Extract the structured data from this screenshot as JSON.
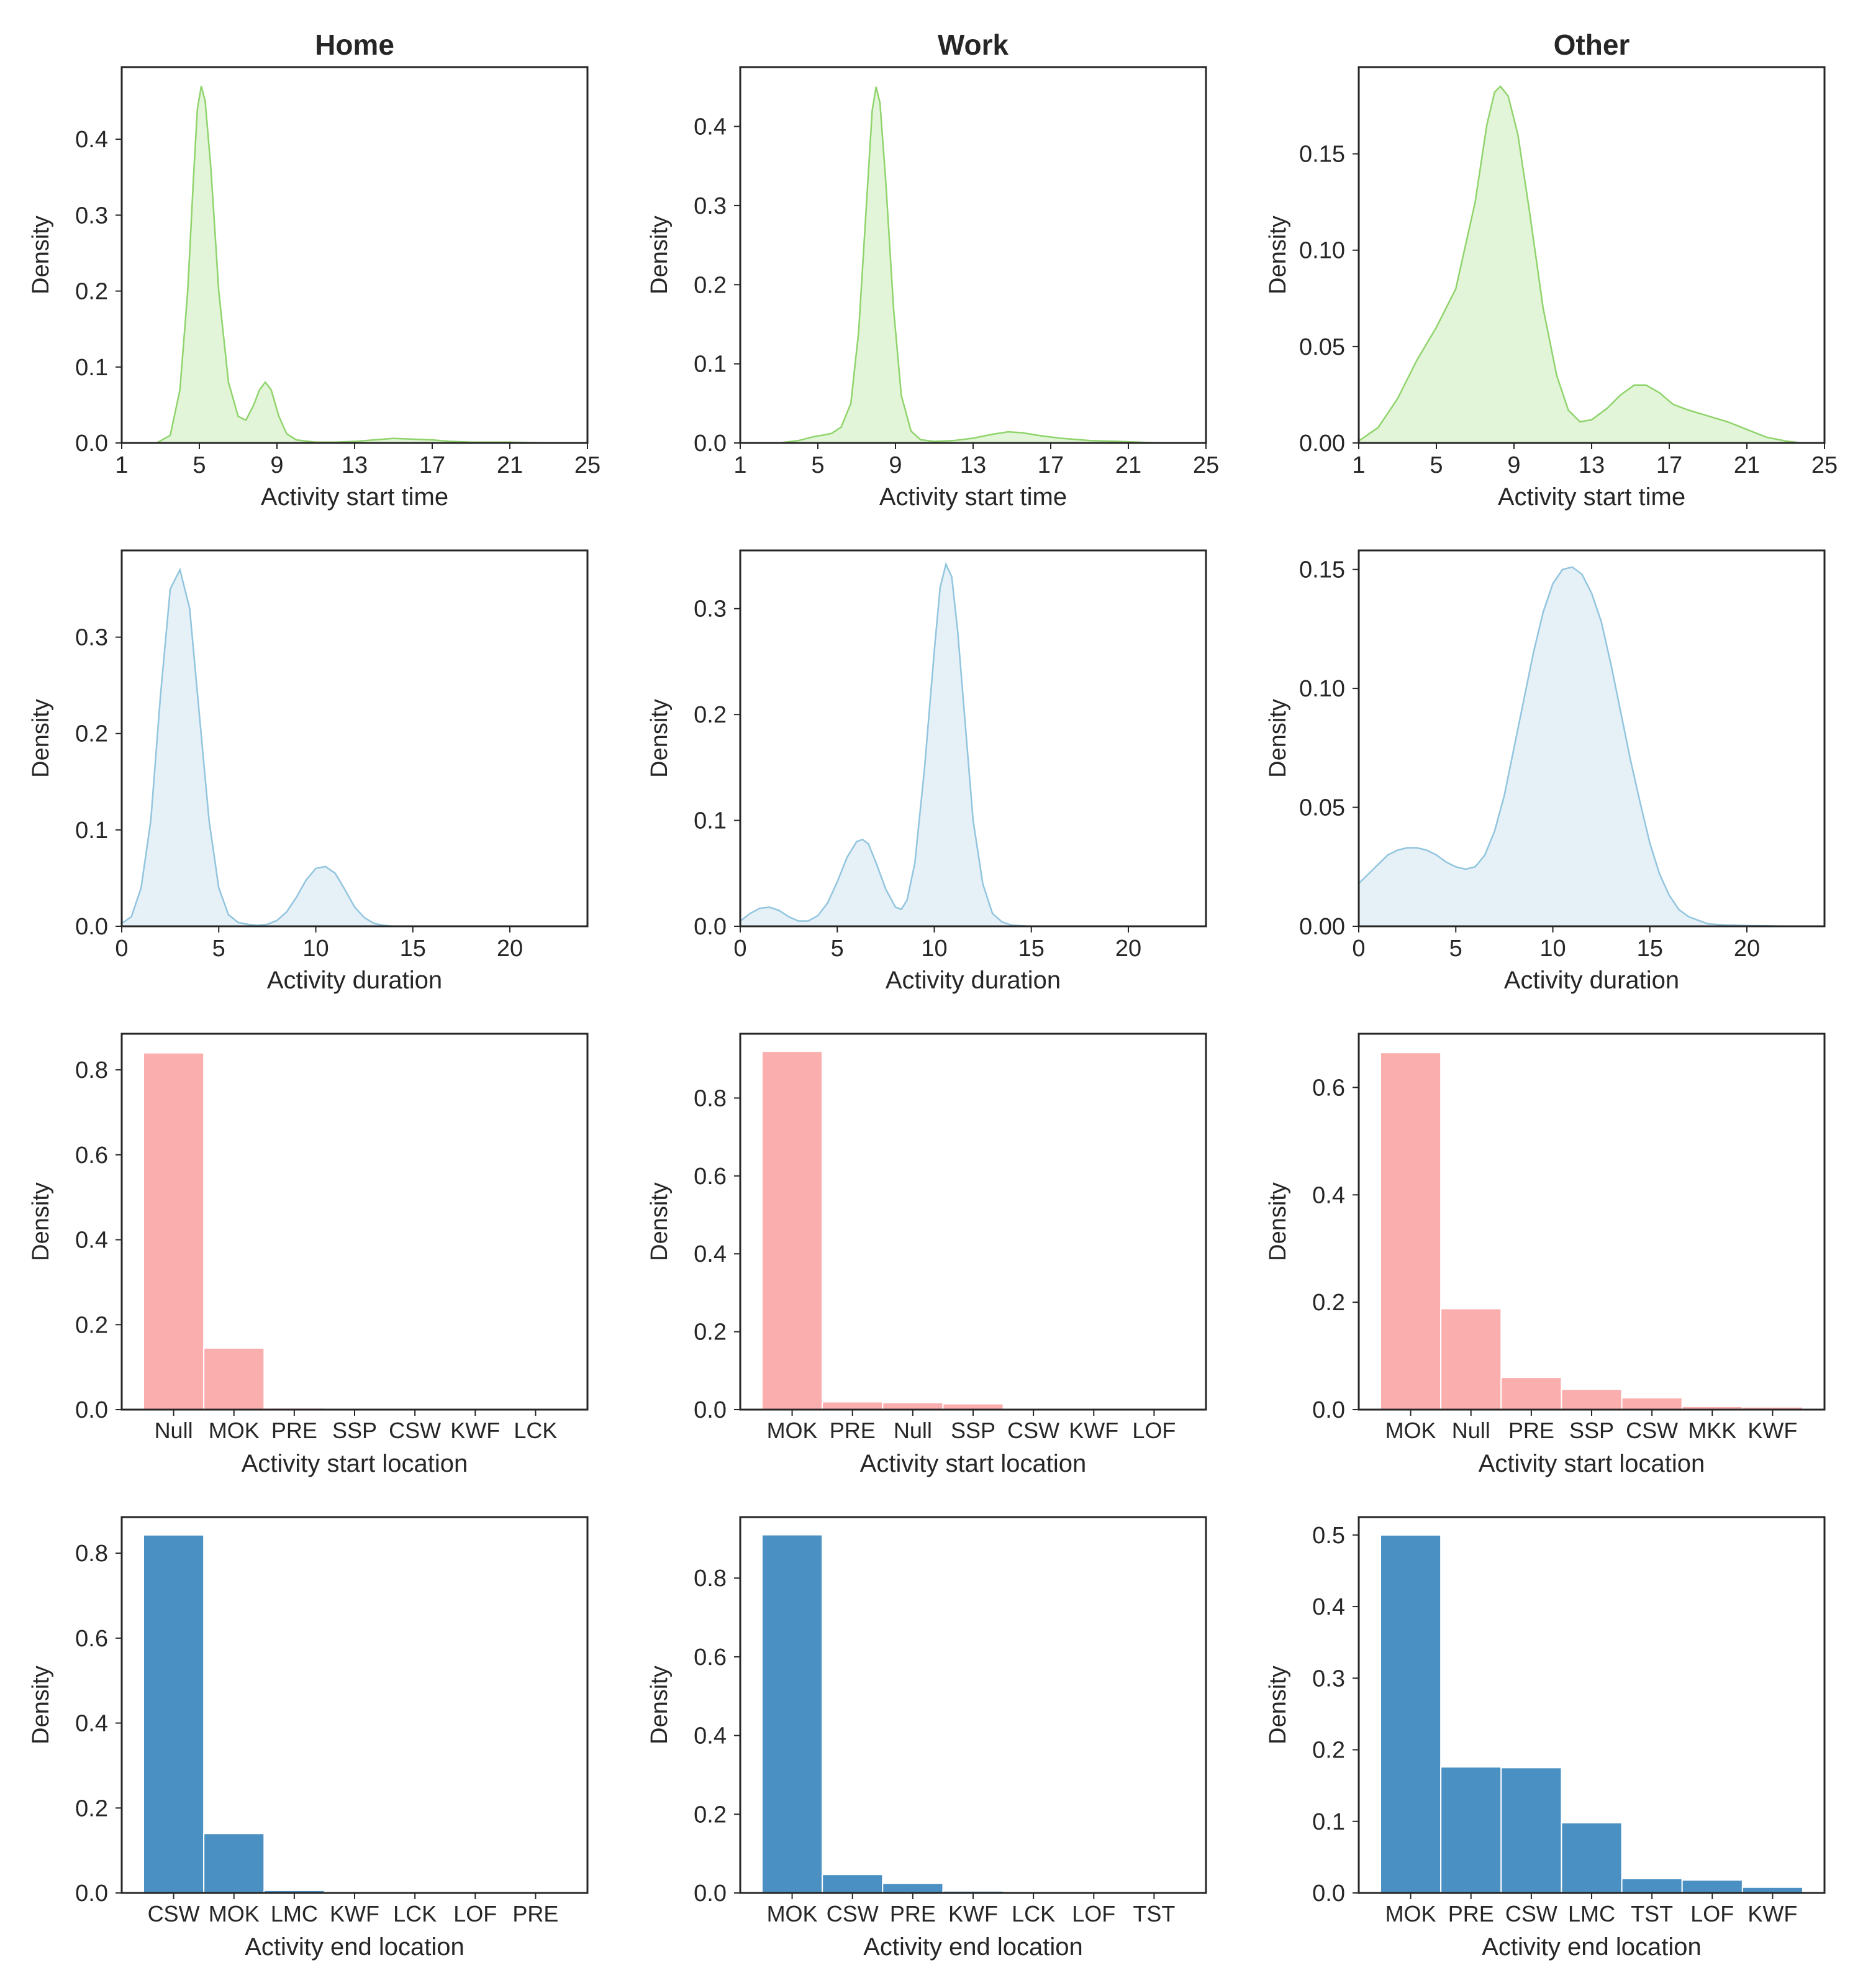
{
  "colors": {
    "start_time_line": "#8fd46c",
    "start_time_fill": "#e3f5d8",
    "duration_line": "#92c5de",
    "duration_fill": "#e5f0f7",
    "start_loc_bar": "#fbaeae",
    "end_loc_bar": "#4a90c2",
    "text": "#262626"
  },
  "chart_data": [
    {
      "type": "area",
      "column": "Home",
      "title": "Home",
      "xlabel": "Activity start time",
      "ylabel": "Density",
      "xlim": [
        1,
        25
      ],
      "ylim": [
        0,
        0.495
      ],
      "xticks": [
        "1",
        "5",
        "9",
        "13",
        "17",
        "21",
        "25"
      ],
      "yticks": [
        "0.0",
        "0.1",
        "0.2",
        "0.3",
        "0.4"
      ],
      "x": [
        2.8,
        3.5,
        4,
        4.4,
        4.7,
        4.9,
        5.1,
        5.3,
        5.6,
        6,
        6.5,
        7,
        7.4,
        7.8,
        8.1,
        8.4,
        8.7,
        9.1,
        9.5,
        10,
        11,
        12,
        13,
        14,
        15,
        16,
        17,
        18,
        19,
        20,
        21,
        22,
        23,
        24,
        25
      ],
      "y": [
        0,
        0.01,
        0.07,
        0.2,
        0.35,
        0.44,
        0.47,
        0.45,
        0.36,
        0.2,
        0.08,
        0.035,
        0.03,
        0.05,
        0.07,
        0.08,
        0.07,
        0.035,
        0.012,
        0.004,
        0.001,
        0.001,
        0.002,
        0.004,
        0.006,
        0.005,
        0.004,
        0.002,
        0.001,
        0.001,
        0.001,
        0.0005,
        0,
        0,
        0
      ]
    },
    {
      "type": "area",
      "column": "Work",
      "title": "Work",
      "xlabel": "Activity start time",
      "ylabel": "Density",
      "xlim": [
        1,
        25
      ],
      "ylim": [
        0,
        0.475
      ],
      "xticks": [
        "1",
        "5",
        "9",
        "13",
        "17",
        "21",
        "25"
      ],
      "yticks": [
        "0.0",
        "0.1",
        "0.2",
        "0.3",
        "0.4"
      ],
      "x": [
        3,
        4,
        4.8,
        5.3,
        5.7,
        6.2,
        6.7,
        7.1,
        7.5,
        7.8,
        8,
        8.2,
        8.5,
        8.9,
        9.3,
        9.8,
        10.3,
        11,
        12,
        13,
        14,
        14.8,
        15.5,
        16.5,
        17.5,
        19,
        20.5,
        22,
        23
      ],
      "y": [
        0,
        0.003,
        0.008,
        0.01,
        0.012,
        0.02,
        0.05,
        0.14,
        0.3,
        0.42,
        0.45,
        0.43,
        0.33,
        0.17,
        0.06,
        0.015,
        0.004,
        0.002,
        0.003,
        0.006,
        0.011,
        0.014,
        0.013,
        0.009,
        0.006,
        0.003,
        0.002,
        0.0005,
        0
      ]
    },
    {
      "type": "area",
      "column": "Other",
      "title": "Other",
      "xlabel": "Activity start time",
      "ylabel": "Density",
      "xlim": [
        1,
        25
      ],
      "ylim": [
        0,
        0.195
      ],
      "xticks": [
        "1",
        "5",
        "9",
        "13",
        "17",
        "21",
        "25"
      ],
      "yticks": [
        "0.00",
        "0.05",
        "0.10",
        "0.15"
      ],
      "x": [
        1,
        2,
        3,
        4,
        5,
        6,
        7,
        7.6,
        8,
        8.3,
        8.7,
        9.2,
        9.8,
        10.5,
        11.2,
        11.8,
        12.4,
        13,
        13.8,
        14.5,
        15.2,
        15.8,
        16.5,
        17.2,
        18,
        19,
        20,
        21,
        22,
        23,
        23.8
      ],
      "y": [
        0.001,
        0.008,
        0.023,
        0.043,
        0.06,
        0.08,
        0.125,
        0.165,
        0.182,
        0.185,
        0.18,
        0.16,
        0.12,
        0.07,
        0.035,
        0.017,
        0.011,
        0.012,
        0.018,
        0.025,
        0.03,
        0.03,
        0.026,
        0.02,
        0.017,
        0.014,
        0.011,
        0.007,
        0.003,
        0.001,
        0
      ]
    },
    {
      "type": "area",
      "column": "Home",
      "xlabel": "Activity duration",
      "ylabel": "Density",
      "xlim": [
        0,
        24
      ],
      "ylim": [
        0,
        0.39
      ],
      "xticks": [
        "0",
        "5",
        "10",
        "15",
        "20"
      ],
      "yticks": [
        "0.0",
        "0.1",
        "0.2",
        "0.3"
      ],
      "x": [
        0,
        0.5,
        1,
        1.5,
        2,
        2.5,
        3,
        3.5,
        4,
        4.5,
        5,
        5.5,
        6,
        6.5,
        7,
        7.5,
        8,
        8.5,
        9,
        9.5,
        10,
        10.5,
        11,
        11.5,
        12,
        12.5,
        13,
        13.5,
        14,
        15
      ],
      "y": [
        0.003,
        0.01,
        0.04,
        0.11,
        0.24,
        0.35,
        0.37,
        0.33,
        0.22,
        0.11,
        0.04,
        0.012,
        0.004,
        0.002,
        0.001,
        0.002,
        0.006,
        0.015,
        0.03,
        0.048,
        0.06,
        0.062,
        0.055,
        0.038,
        0.02,
        0.009,
        0.003,
        0.001,
        0,
        0
      ]
    },
    {
      "type": "area",
      "column": "Work",
      "xlabel": "Activity duration",
      "ylabel": "Density",
      "xlim": [
        0,
        24
      ],
      "ylim": [
        0,
        0.355
      ],
      "xticks": [
        "0",
        "5",
        "10",
        "15",
        "20"
      ],
      "yticks": [
        "0.0",
        "0.1",
        "0.2",
        "0.3"
      ],
      "x": [
        0,
        0.5,
        1,
        1.5,
        2,
        2.5,
        3,
        3.5,
        4,
        4.5,
        5,
        5.5,
        6,
        6.3,
        6.6,
        7,
        7.5,
        8,
        8.3,
        8.6,
        9,
        9.5,
        10,
        10.3,
        10.6,
        10.9,
        11.2,
        11.6,
        12,
        12.5,
        13,
        13.5,
        14,
        15
      ],
      "y": [
        0.005,
        0.012,
        0.017,
        0.018,
        0.015,
        0.009,
        0.005,
        0.005,
        0.01,
        0.022,
        0.042,
        0.065,
        0.08,
        0.082,
        0.078,
        0.06,
        0.035,
        0.018,
        0.016,
        0.025,
        0.06,
        0.15,
        0.26,
        0.32,
        0.342,
        0.33,
        0.28,
        0.19,
        0.1,
        0.04,
        0.012,
        0.004,
        0.001,
        0
      ]
    },
    {
      "type": "area",
      "column": "Other",
      "xlabel": "Activity duration",
      "ylabel": "Density",
      "xlim": [
        0,
        24
      ],
      "ylim": [
        0,
        0.158
      ],
      "xticks": [
        "0",
        "5",
        "10",
        "15",
        "20"
      ],
      "yticks": [
        "0.00",
        "0.05",
        "0.10",
        "0.15"
      ],
      "x": [
        0,
        0.5,
        1,
        1.5,
        2,
        2.5,
        3,
        3.5,
        4,
        4.5,
        5,
        5.5,
        6,
        6.5,
        7,
        7.5,
        8,
        8.5,
        9,
        9.5,
        10,
        10.5,
        11,
        11.5,
        12,
        12.5,
        13,
        13.5,
        14,
        14.5,
        15,
        15.5,
        16,
        16.5,
        17,
        18,
        19,
        20,
        21,
        22
      ],
      "y": [
        0.018,
        0.022,
        0.026,
        0.03,
        0.032,
        0.033,
        0.033,
        0.032,
        0.03,
        0.027,
        0.025,
        0.024,
        0.025,
        0.03,
        0.04,
        0.055,
        0.075,
        0.095,
        0.115,
        0.132,
        0.144,
        0.15,
        0.151,
        0.148,
        0.14,
        0.128,
        0.11,
        0.09,
        0.07,
        0.052,
        0.035,
        0.022,
        0.013,
        0.007,
        0.004,
        0.001,
        0.0005,
        0.0003,
        0.0002,
        0
      ]
    },
    {
      "type": "bar",
      "column": "Home",
      "xlabel": "Activity start location",
      "ylabel": "Density",
      "categories": [
        "Null",
        "MOK",
        "PRE",
        "SSP",
        "CSW",
        "KWF",
        "LCK"
      ],
      "values": [
        0.84,
        0.145,
        0.004,
        0.002,
        0.001,
        0.0005,
        0.0005
      ],
      "ylim": [
        0,
        0.885
      ],
      "yticks": [
        "0.0",
        "0.2",
        "0.4",
        "0.6",
        "0.8"
      ]
    },
    {
      "type": "bar",
      "column": "Work",
      "xlabel": "Activity start location",
      "ylabel": "Density",
      "categories": [
        "MOK",
        "PRE",
        "Null",
        "SSP",
        "CSW",
        "KWF",
        "LOF"
      ],
      "values": [
        0.92,
        0.02,
        0.018,
        0.015,
        0.004,
        0.002,
        0.001
      ],
      "ylim": [
        0,
        0.965
      ],
      "yticks": [
        "0.0",
        "0.2",
        "0.4",
        "0.6",
        "0.8"
      ]
    },
    {
      "type": "bar",
      "column": "Other",
      "xlabel": "Activity start location",
      "ylabel": "Density",
      "categories": [
        "MOK",
        "Null",
        "PRE",
        "SSP",
        "CSW",
        "MKK",
        "KWF"
      ],
      "values": [
        0.665,
        0.188,
        0.06,
        0.038,
        0.022,
        0.006,
        0.005
      ],
      "ylim": [
        0,
        0.7
      ],
      "yticks": [
        "0.0",
        "0.2",
        "0.4",
        "0.6"
      ]
    },
    {
      "type": "bar",
      "column": "Home",
      "xlabel": "Activity end location",
      "ylabel": "Density",
      "categories": [
        "CSW",
        "MOK",
        "LMC",
        "KWF",
        "LCK",
        "LOF",
        "PRE"
      ],
      "values": [
        0.843,
        0.14,
        0.006,
        0.002,
        0.001,
        0.001,
        0.0005
      ],
      "ylim": [
        0,
        0.885
      ],
      "yticks": [
        "0.0",
        "0.2",
        "0.4",
        "0.6",
        "0.8"
      ]
    },
    {
      "type": "bar",
      "column": "Work",
      "xlabel": "Activity end location",
      "ylabel": "Density",
      "categories": [
        "MOK",
        "CSW",
        "PRE",
        "KWF",
        "LCK",
        "LOF",
        "TST"
      ],
      "values": [
        0.91,
        0.047,
        0.024,
        0.005,
        0.002,
        0.001,
        0.001
      ],
      "ylim": [
        0,
        0.955
      ],
      "yticks": [
        "0.0",
        "0.2",
        "0.4",
        "0.6",
        "0.8"
      ]
    },
    {
      "type": "bar",
      "column": "Other",
      "xlabel": "Activity end location",
      "ylabel": "Density",
      "categories": [
        "MOK",
        "PRE",
        "CSW",
        "LMC",
        "TST",
        "LOF",
        "KWF"
      ],
      "values": [
        0.5,
        0.176,
        0.175,
        0.098,
        0.02,
        0.018,
        0.008
      ],
      "ylim": [
        0,
        0.525
      ],
      "yticks": [
        "0.0",
        "0.1",
        "0.2",
        "0.3",
        "0.4",
        "0.5"
      ]
    }
  ]
}
